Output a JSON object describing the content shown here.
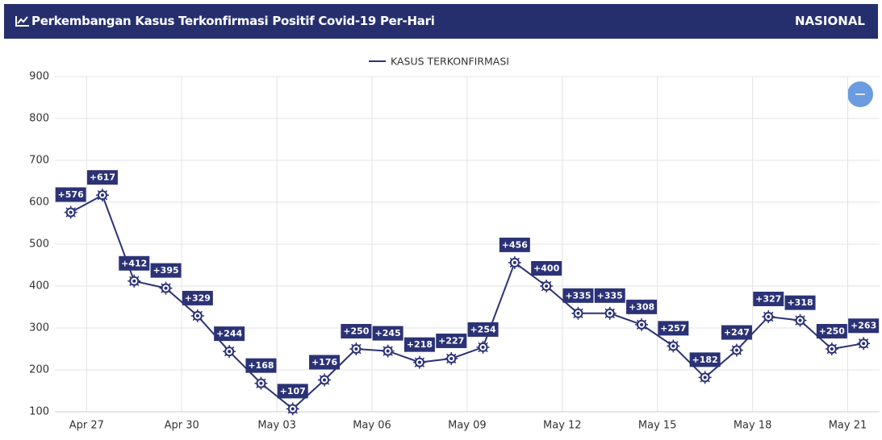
{
  "header": {
    "title": "Perkembangan Kasus Terkonfirmasi Positif Covid-19 Per-Hari",
    "region": "NASIONAL"
  },
  "chart_data": {
    "type": "line",
    "categories": [
      null,
      "Apr 27",
      null,
      null,
      "Apr 30",
      null,
      null,
      "May 03",
      null,
      null,
      "May 06",
      null,
      null,
      "May 09",
      null,
      null,
      "May 12",
      null,
      null,
      "May 15",
      null,
      null,
      "May 18",
      null,
      null,
      "May 21"
    ],
    "series": [
      {
        "name": "KASUS TERKONFIRMASI",
        "color": "#2b3275",
        "values": [
          576,
          617,
          412,
          395,
          329,
          244,
          168,
          107,
          176,
          250,
          245,
          218,
          227,
          254,
          456,
          400,
          335,
          335,
          308,
          257,
          182,
          247,
          327,
          318,
          250,
          263
        ],
        "value_labels": [
          "+576",
          "+617",
          "+412",
          "+395",
          "+329",
          "+244",
          "+168",
          "+107",
          "+176",
          "+250",
          "+245",
          "+218",
          "+227",
          "+254",
          "+456",
          "+400",
          "+335",
          "+335",
          "+308",
          "+257",
          "+182",
          "+247",
          "+327",
          "+318",
          "+250",
          "+263"
        ]
      }
    ],
    "ylim": [
      100,
      900
    ],
    "yticks": [
      100,
      200,
      300,
      400,
      500,
      600,
      700,
      800,
      900
    ],
    "grid": true,
    "legend": "top"
  }
}
